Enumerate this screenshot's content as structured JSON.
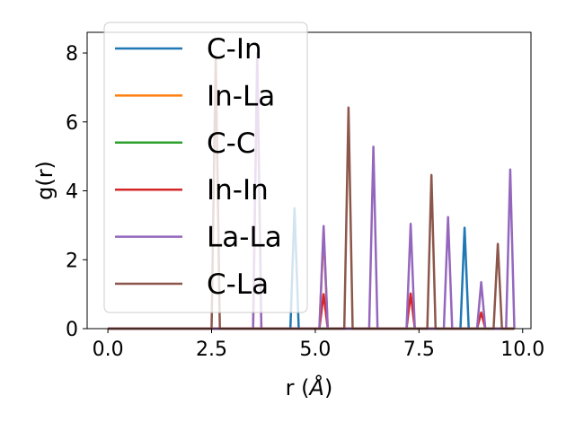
{
  "chart_data": {
    "type": "line",
    "title": "",
    "xlabel": "r (",
    "xlabel_unit": "Å",
    "xlabel_close": ")",
    "ylabel": "g(r)",
    "xlim": [
      -0.5,
      10.2
    ],
    "ylim": [
      0,
      8.6
    ],
    "x_ticks": [
      0.0,
      2.5,
      5.0,
      7.5,
      10.0
    ],
    "x_tick_labels": [
      "0.0",
      "2.5",
      "5.0",
      "7.5",
      "10.0"
    ],
    "y_ticks": [
      0,
      2,
      4,
      6,
      8
    ],
    "y_tick_labels": [
      "0",
      "2",
      "4",
      "6",
      "8"
    ],
    "grid": false,
    "legend_position": "top-left",
    "x_range": [
      0.0,
      9.8
    ],
    "series": [
      {
        "name": "C-In",
        "color": "#1f77b4",
        "peaks": [
          {
            "x": 4.5,
            "y": 3.5
          },
          {
            "x": 8.6,
            "y": 2.93
          }
        ]
      },
      {
        "name": "In-La",
        "color": "#ff7f0e",
        "peaks": [
          {
            "x": 3.6,
            "y": 7.9
          },
          {
            "x": 5.2,
            "y": 2.8
          }
        ]
      },
      {
        "name": "C-C",
        "color": "#2ca02c",
        "peaks": []
      },
      {
        "name": "In-In",
        "color": "#d62728",
        "peaks": [
          {
            "x": 5.2,
            "y": 1.0
          },
          {
            "x": 7.3,
            "y": 1.02
          },
          {
            "x": 9.0,
            "y": 0.47
          }
        ]
      },
      {
        "name": "La-La",
        "color": "#9467bd",
        "peaks": [
          {
            "x": 3.6,
            "y": 8.0
          },
          {
            "x": 5.2,
            "y": 2.98
          },
          {
            "x": 6.4,
            "y": 5.28
          },
          {
            "x": 7.3,
            "y": 3.04
          },
          {
            "x": 8.2,
            "y": 3.24
          },
          {
            "x": 9.0,
            "y": 1.35
          },
          {
            "x": 9.7,
            "y": 4.62
          }
        ]
      },
      {
        "name": "C-La",
        "color": "#8c564b",
        "peaks": [
          {
            "x": 2.6,
            "y": 7.9
          },
          {
            "x": 5.8,
            "y": 6.42
          },
          {
            "x": 7.8,
            "y": 4.46
          },
          {
            "x": 9.4,
            "y": 2.46
          }
        ]
      }
    ]
  }
}
